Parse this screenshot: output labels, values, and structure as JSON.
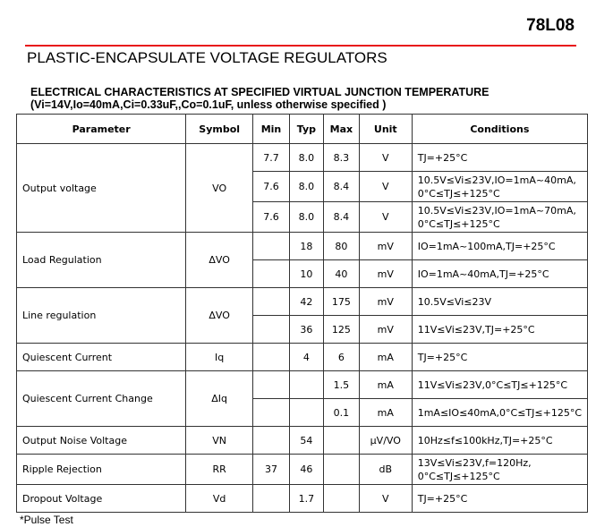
{
  "part_number": "78L08",
  "title": "PLASTIC-ENCAPSULATE VOLTAGE REGULATORS",
  "section_title": "ELECTRICAL CHARACTERISTICS AT SPECIFIED VIRTUAL JUNCTION TEMPERATURE",
  "section_subtitle": "(Vi=14V,Io=40mA,Ci=0.33uF,,Co=0.1uF, unless otherwise specified )",
  "headers": [
    "Parameter",
    "Symbol",
    "Min",
    "Typ",
    "Max",
    "Unit",
    "Conditions"
  ],
  "groups": [
    {
      "parameter": "Output voltage",
      "symbol": "VO",
      "rows": [
        {
          "min": "7.7",
          "typ": "8.0",
          "max": "8.3",
          "unit": "V",
          "conditions": "TJ=+25°C"
        },
        {
          "min": "7.6",
          "typ": "8.0",
          "max": "8.4",
          "unit": "V",
          "conditions": "10.5V≤Vi≤23V,IO=1mA~40mA, 0°C≤TJ≤+125°C"
        },
        {
          "min": "7.6",
          "typ": "8.0",
          "max": "8.4",
          "unit": "V",
          "conditions": "10.5V≤Vi≤23V,IO=1mA~70mA, 0°C≤TJ≤+125°C"
        }
      ]
    },
    {
      "parameter": "Load Regulation",
      "symbol": "ΔVO",
      "rows": [
        {
          "min": "",
          "typ": "18",
          "max": "80",
          "unit": "mV",
          "conditions": "IO=1mA~100mA,TJ=+25°C"
        },
        {
          "min": "",
          "typ": "10",
          "max": "40",
          "unit": "mV",
          "conditions": "IO=1mA~40mA,TJ=+25°C"
        }
      ]
    },
    {
      "parameter": "Line regulation",
      "symbol": "ΔVO",
      "rows": [
        {
          "min": "",
          "typ": "42",
          "max": "175",
          "unit": "mV",
          "conditions": "10.5V≤Vi≤23V"
        },
        {
          "min": "",
          "typ": "36",
          "max": "125",
          "unit": "mV",
          "conditions": "11V≤Vi≤23V,TJ=+25°C"
        }
      ]
    },
    {
      "parameter": "Quiescent Current",
      "symbol": "Iq",
      "rows": [
        {
          "min": "",
          "typ": "4",
          "max": "6",
          "unit": "mA",
          "conditions": "TJ=+25°C"
        }
      ]
    },
    {
      "parameter": "Quiescent Current Change",
      "symbol": "ΔIq",
      "rows": [
        {
          "min": "",
          "typ": "",
          "max": "1.5",
          "unit": "mA",
          "conditions": "11V≤Vi≤23V,0°C≤TJ≤+125°C"
        },
        {
          "min": "",
          "typ": "",
          "max": "0.1",
          "unit": "mA",
          "conditions": "1mA≤IO≤40mA,0°C≤TJ≤+125°C"
        }
      ]
    },
    {
      "parameter": "Output Noise Voltage",
      "symbol": "VN",
      "rows": [
        {
          "min": "",
          "typ": "54",
          "max": "",
          "unit": "μV/VO",
          "conditions": "10Hz≤f≤100kHz,TJ=+25°C"
        }
      ]
    },
    {
      "parameter": "Ripple Rejection",
      "symbol": "RR",
      "rows": [
        {
          "min": "37",
          "typ": "46",
          "max": "",
          "unit": "dB",
          "conditions": "13V≤Vi≤23V,f=120Hz, 0°C≤TJ≤+125°C"
        }
      ]
    },
    {
      "parameter": "Dropout Voltage",
      "symbol": "Vd",
      "rows": [
        {
          "min": "",
          "typ": "1.7",
          "max": "",
          "unit": "V",
          "conditions": "TJ=+25°C"
        }
      ]
    }
  ],
  "footnote": "*Pulse Test",
  "colors": {
    "rule": "#e8141b"
  }
}
